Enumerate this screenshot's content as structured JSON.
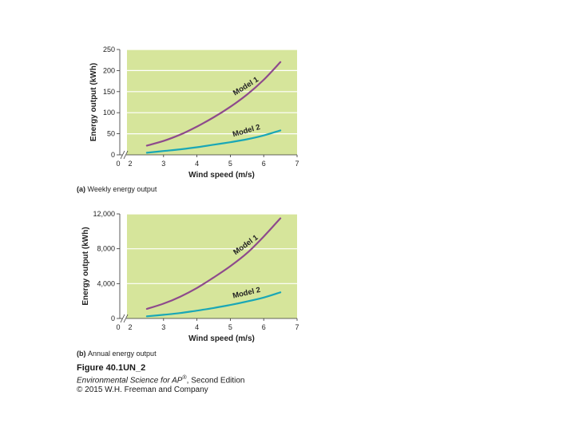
{
  "colors": {
    "plot_bg": "#d6e59b",
    "grid": "#ffffff",
    "model1": "#8e4a8c",
    "model2": "#1aa7b6",
    "axis": "#333333"
  },
  "chart_data": [
    {
      "type": "line",
      "panel_caption_bold": "(a)",
      "panel_caption": "Weekly energy output",
      "xlabel": "Wind speed (m/s)",
      "ylabel": "Energy output (kWh)",
      "xlim": [
        2,
        7
      ],
      "ylim": [
        0,
        250
      ],
      "x_ticks": [
        "2",
        "3",
        "4",
        "5",
        "6",
        "7"
      ],
      "x_zero_label": "0",
      "y_ticks": [
        "0",
        "50",
        "100",
        "150",
        "200",
        "250"
      ],
      "y_tick_values": [
        0,
        50,
        100,
        150,
        200,
        250
      ],
      "axis_break": true,
      "grid": "horizontal",
      "series": [
        {
          "name": "Model 1",
          "x": [
            2.5,
            3,
            3.5,
            4,
            4.5,
            5,
            5.5,
            6,
            6.5
          ],
          "y": [
            22,
            33,
            48,
            67,
            89,
            114,
            143,
            178,
            220
          ]
        },
        {
          "name": "Model 2",
          "x": [
            2.5,
            3,
            3.5,
            4,
            4.5,
            5,
            5.5,
            6,
            6.5
          ],
          "y": [
            5,
            9,
            13,
            18,
            24,
            30,
            37,
            46,
            58
          ]
        }
      ]
    },
    {
      "type": "line",
      "panel_caption_bold": "(b)",
      "panel_caption": "Annual energy output",
      "xlabel": "Wind speed (m/s)",
      "ylabel": "Energy output (kWh)",
      "xlim": [
        2,
        7
      ],
      "ylim": [
        0,
        12000
      ],
      "x_ticks": [
        "2",
        "3",
        "4",
        "5",
        "6",
        "7"
      ],
      "x_zero_label": "0",
      "y_ticks": [
        "0",
        "4,000",
        "8,000",
        "12,000"
      ],
      "y_tick_values": [
        0,
        4000,
        8000,
        12000
      ],
      "axis_break": true,
      "grid": "horizontal",
      "series": [
        {
          "name": "Model 1",
          "x": [
            2.5,
            3,
            3.5,
            4,
            4.5,
            5,
            5.5,
            6,
            6.5
          ],
          "y": [
            1100,
            1700,
            2500,
            3500,
            4700,
            6000,
            7500,
            9400,
            11500
          ]
        },
        {
          "name": "Model 2",
          "x": [
            2.5,
            3,
            3.5,
            4,
            4.5,
            5,
            5.5,
            6,
            6.5
          ],
          "y": [
            250,
            420,
            620,
            900,
            1200,
            1550,
            1950,
            2400,
            3000
          ]
        }
      ]
    }
  ],
  "figure": {
    "number": "Figure 40.1UN_2",
    "book_title": "Environmental Science for AP",
    "book_title_sup": "®",
    "book_edition": ", Second Edition",
    "copyright": "© 2015 W.H. Freeman and Company"
  }
}
